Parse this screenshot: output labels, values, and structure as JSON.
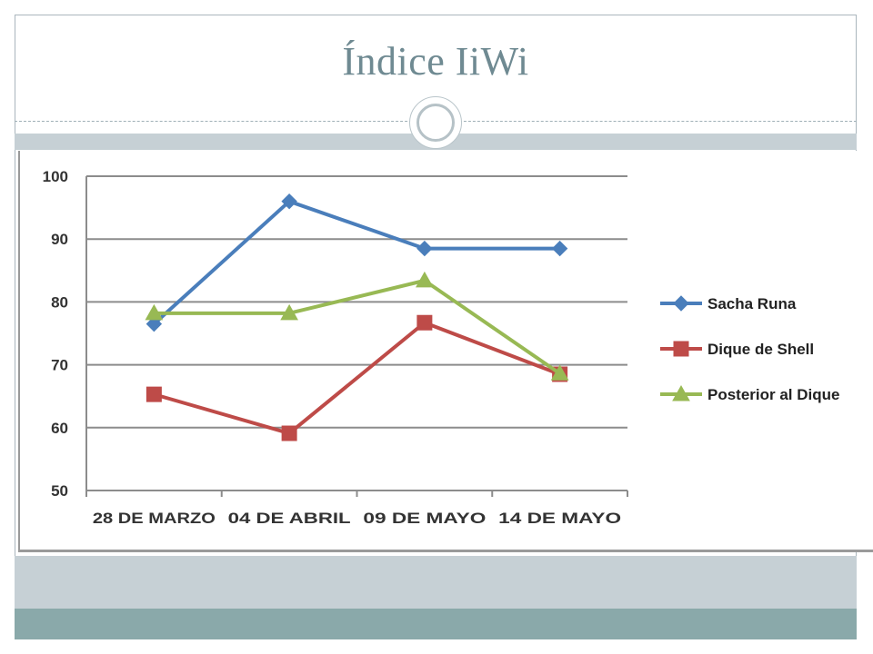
{
  "slide": {
    "title": "Índice IiWi"
  },
  "chart_data": {
    "type": "line",
    "title": "",
    "xlabel": "",
    "ylabel": "",
    "categories": [
      "28 DE MARZO",
      "04 DE ABRIL",
      "09 DE MAYO",
      "14 DE MAYO"
    ],
    "ylim": [
      50,
      100
    ],
    "yticks": [
      50,
      60,
      70,
      80,
      90,
      100
    ],
    "grid": true,
    "legend_position": "right",
    "series": [
      {
        "name": "Sacha Runa",
        "values": [
          76.5,
          96,
          88.5,
          88.5
        ],
        "color": "#4a7ebb",
        "marker": "diamond"
      },
      {
        "name": "Dique de Shell",
        "values": [
          65.3,
          59.1,
          76.7,
          68.5
        ],
        "color": "#be4b48",
        "marker": "square"
      },
      {
        "name": "Posterior al Dique",
        "values": [
          78.2,
          78.2,
          83.4,
          68.6
        ],
        "color": "#98b954",
        "marker": "triangle"
      }
    ]
  }
}
